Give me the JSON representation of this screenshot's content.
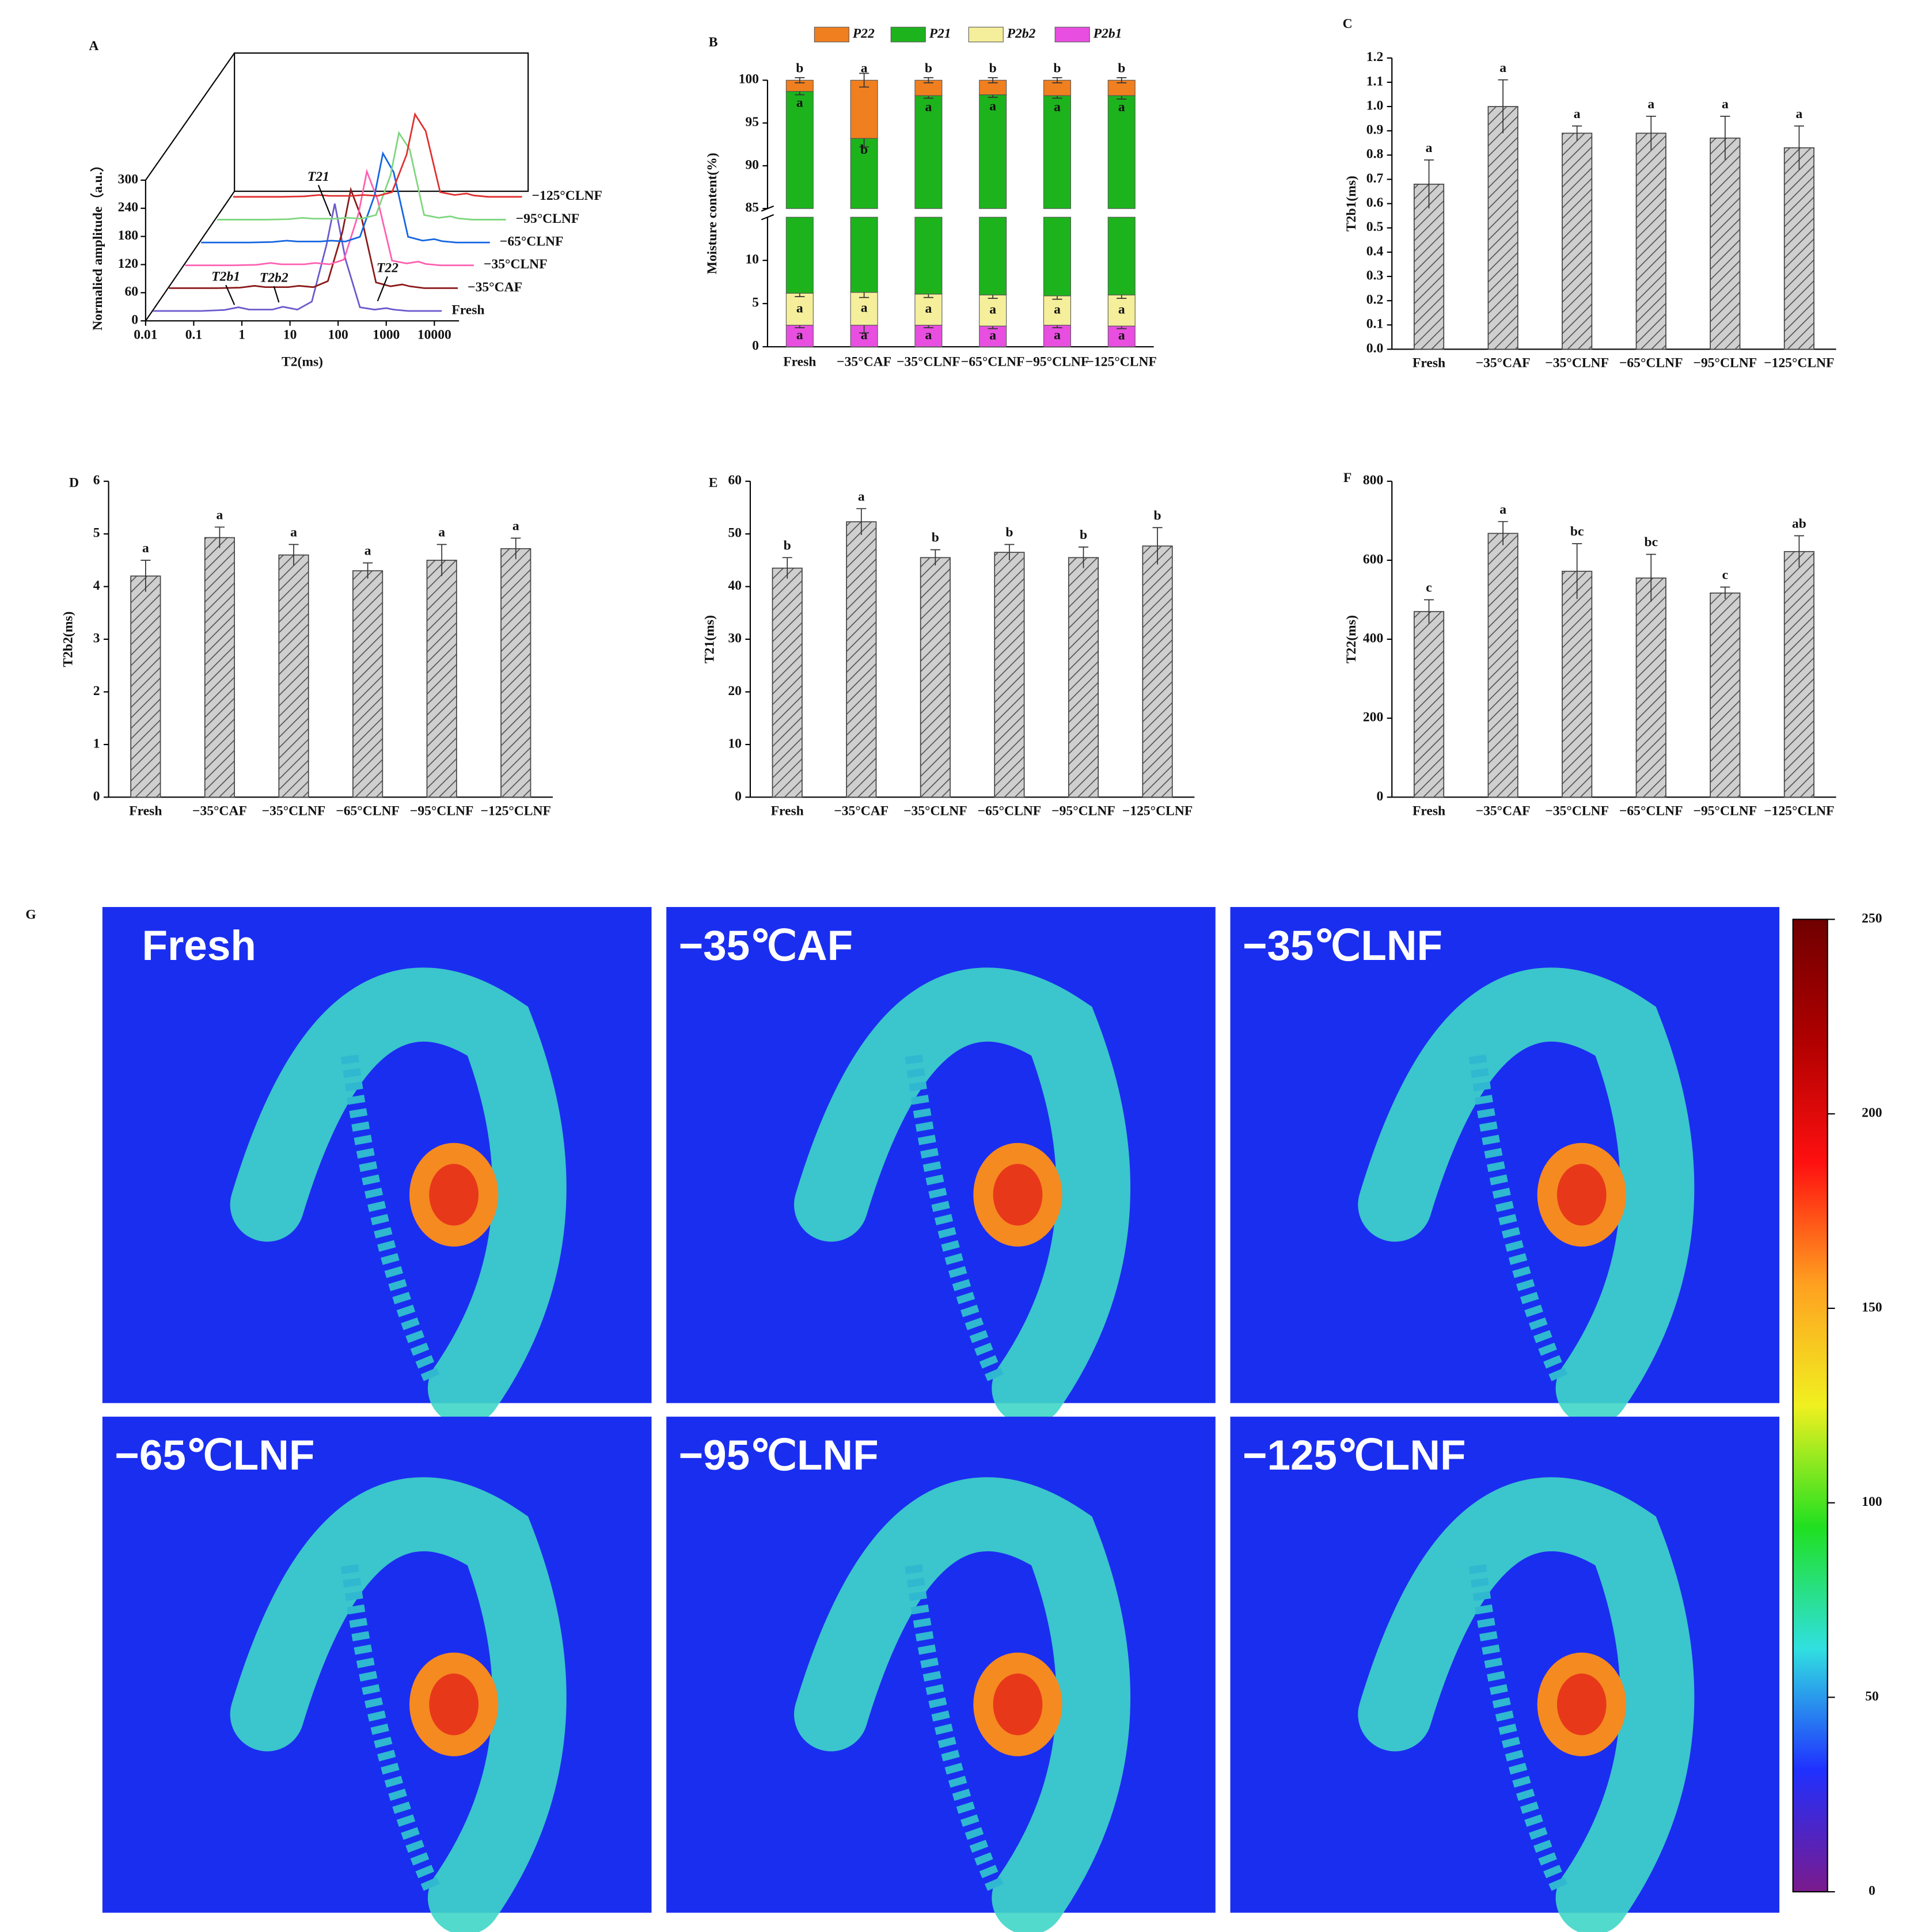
{
  "chart_data": [
    {
      "type": "waterfall",
      "label": "A",
      "ylabel": "Normalied amplitude（a.u.）",
      "xlabel": "T2(ms)",
      "xlog": true,
      "xlim": [
        0.01,
        10000
      ],
      "xticks": [
        0.01,
        0.1,
        1,
        10,
        100,
        1000,
        10000
      ],
      "ylim": [
        0,
        300
      ],
      "yticks": [
        0,
        60,
        120,
        180,
        240,
        300
      ],
      "x": [
        0.01,
        0.1,
        0.3,
        0.6,
        1,
        3,
        5,
        10,
        20,
        40,
        60,
        100,
        200,
        400,
        700,
        1000,
        2000,
        5000,
        10000
      ],
      "series": [
        {
          "name": "Fresh",
          "color": "#6a5acd",
          "values": [
            0,
            0,
            2,
            8,
            3,
            3,
            9,
            3,
            20,
            140,
            229,
            110,
            8,
            3,
            6,
            3,
            0,
            0,
            0
          ]
        },
        {
          "name": "−35°CAF",
          "color": "#8b1a1a",
          "values": [
            0,
            0,
            1,
            5,
            2,
            2,
            5,
            2,
            15,
            120,
            210,
            150,
            12,
            4,
            8,
            4,
            0,
            0,
            0
          ]
        },
        {
          "name": "−35°CLNF",
          "color": "#ff5fb0",
          "values": [
            0,
            0,
            1,
            5,
            2,
            2,
            5,
            2,
            12,
            110,
            200,
            140,
            10,
            4,
            8,
            3,
            0,
            0,
            0
          ]
        },
        {
          "name": "−65°CLNF",
          "color": "#1565e0",
          "values": [
            0,
            0,
            1,
            4,
            2,
            2,
            4,
            2,
            12,
            100,
            190,
            150,
            12,
            4,
            7,
            3,
            0,
            0,
            0
          ]
        },
        {
          "name": "−95°CLNF",
          "color": "#7fd67f",
          "values": [
            0,
            0,
            1,
            4,
            2,
            2,
            4,
            2,
            10,
            95,
            185,
            150,
            10,
            4,
            7,
            3,
            0,
            0,
            0
          ]
        },
        {
          "name": "−125°CLNF",
          "color": "#e03030",
          "values": [
            0,
            0,
            1,
            4,
            2,
            2,
            4,
            2,
            10,
            90,
            176,
            140,
            10,
            4,
            7,
            3,
            0,
            0,
            0
          ]
        }
      ],
      "annotations": [
        "T21",
        "T2b1",
        "T2b2",
        "T22"
      ]
    },
    {
      "type": "stacked_bar",
      "label": "B",
      "ylabel": "Moisture content(%)",
      "categories": [
        "Fresh",
        "−35°CAF",
        "−35°CLNF",
        "−65°CLNF",
        "−95°CLNF",
        "−125°CLNF"
      ],
      "ylim": [
        0,
        100
      ],
      "ybreak": [
        15,
        85
      ],
      "yticks": [
        0,
        5,
        10,
        85,
        90,
        95,
        100
      ],
      "series": [
        {
          "name": "P22",
          "color": "#f07f1f",
          "values": [
            1.3,
            6.8,
            1.8,
            1.7,
            1.8,
            1.8
          ],
          "errors": [
            0.3,
            0.8,
            0.3,
            0.3,
            0.3,
            0.3
          ],
          "letters": [
            "b",
            "a",
            "b",
            "b",
            "b",
            "b"
          ]
        },
        {
          "name": "P21",
          "color": "#1db31d",
          "values": [
            92.5,
            86.9,
            92.1,
            92.3,
            92.3,
            92.2
          ],
          "errors": [
            0.4,
            1,
            0.3,
            0.3,
            0.3,
            0.4
          ],
          "letters": [
            "a",
            "b",
            "a",
            "a",
            "a",
            "a"
          ]
        },
        {
          "name": "P2b2",
          "color": "#f5ee9a",
          "values": [
            3.7,
            3.8,
            3.6,
            3.6,
            3.4,
            3.6
          ],
          "errors": [
            0.4,
            0.6,
            0.4,
            0.4,
            0.4,
            0.4
          ],
          "letters": [
            "a",
            "a",
            "a",
            "a",
            "a",
            "a"
          ]
        },
        {
          "name": "P2b1",
          "color": "#e84ee0",
          "values": [
            2.5,
            2.5,
            2.5,
            2.4,
            2.5,
            2.4
          ],
          "errors": [
            0.3,
            0.9,
            0.3,
            0.3,
            0.3,
            0.3
          ],
          "letters": [
            "a",
            "a",
            "a",
            "a",
            "a",
            "a"
          ]
        }
      ]
    },
    {
      "type": "bar",
      "label": "C",
      "ylabel": "T2b1(ms)",
      "categories": [
        "Fresh",
        "−35°CAF",
        "−35°CLNF",
        "−65°CLNF",
        "−95°CLNF",
        "−125°CLNF"
      ],
      "values": [
        0.68,
        1.0,
        0.89,
        0.89,
        0.87,
        0.83
      ],
      "errors": [
        0.1,
        0.11,
        0.03,
        0.07,
        0.09,
        0.09
      ],
      "letters": [
        "a",
        "a",
        "a",
        "a",
        "a",
        "a"
      ],
      "ylim": [
        0,
        1.2
      ],
      "yticks": [
        {
          "value": 0,
          "label": "0.0"
        },
        0.1,
        0.2,
        0.3,
        0.4,
        0.5,
        0.6,
        0.7,
        0.8,
        0.9,
        {
          "value": 1,
          "label": "1.0"
        },
        1.1,
        1.2
      ]
    },
    {
      "type": "bar",
      "label": "D",
      "ylabel": "T2b2(ms)",
      "categories": [
        "Fresh",
        "−35°CAF",
        "−35°CLNF",
        "−65°CLNF",
        "−95°CLNF",
        "−125°CLNF"
      ],
      "values": [
        4.2,
        4.93,
        4.6,
        4.3,
        4.5,
        4.72
      ],
      "errors": [
        0.3,
        0.2,
        0.2,
        0.15,
        0.3,
        0.2
      ],
      "letters": [
        "a",
        "a",
        "a",
        "a",
        "a",
        "a"
      ],
      "ylim": [
        0,
        6
      ],
      "yticks": [
        0,
        1,
        2,
        3,
        4,
        5,
        6
      ]
    },
    {
      "type": "bar",
      "label": "E",
      "ylabel": "T21(ms)",
      "categories": [
        "Fresh",
        "−35°CAF",
        "−35°CLNF",
        "−65°CLNF",
        "−95°CLNF",
        "−125°CLNF"
      ],
      "values": [
        43.5,
        52.3,
        45.5,
        46.5,
        45.5,
        47.7
      ],
      "errors": [
        2,
        2.5,
        1.5,
        1.5,
        2,
        3.5
      ],
      "letters": [
        "b",
        "a",
        "b",
        "b",
        "b",
        "b"
      ],
      "ylim": [
        0,
        60
      ],
      "yticks": [
        0,
        10,
        20,
        30,
        40,
        50,
        60
      ]
    },
    {
      "type": "bar",
      "label": "F",
      "ylabel": "T22(ms)",
      "categories": [
        "Fresh",
        "−35°CAF",
        "−35°CLNF",
        "−65°CLNF",
        "−95°CLNF",
        "−125°CLNF"
      ],
      "values": [
        470,
        668,
        572,
        555,
        517,
        622
      ],
      "errors": [
        30,
        30,
        70,
        60,
        15,
        40
      ],
      "letters": [
        "c",
        "a",
        "bc",
        "bc",
        "c",
        "ab"
      ],
      "ylim": [
        0,
        800
      ],
      "yticks": [
        0,
        200,
        400,
        600,
        800
      ]
    },
    {
      "type": "image_grid",
      "label": "G",
      "panels": [
        "Fresh",
        "−35℃AF",
        "−35℃LNF",
        "−65℃LNF",
        "−95℃LNF",
        "−125℃LNF"
      ],
      "colorbar": {
        "ylim": [
          0,
          250
        ],
        "yticks": [
          0,
          50,
          100,
          150,
          200,
          250
        ],
        "colors": [
          "#7b1a8c",
          "#2030ff",
          "#30e0e0",
          "#20e020",
          "#f0f020",
          "#ffa020",
          "#ff1010",
          "#b00000",
          "#700000"
        ]
      }
    }
  ]
}
